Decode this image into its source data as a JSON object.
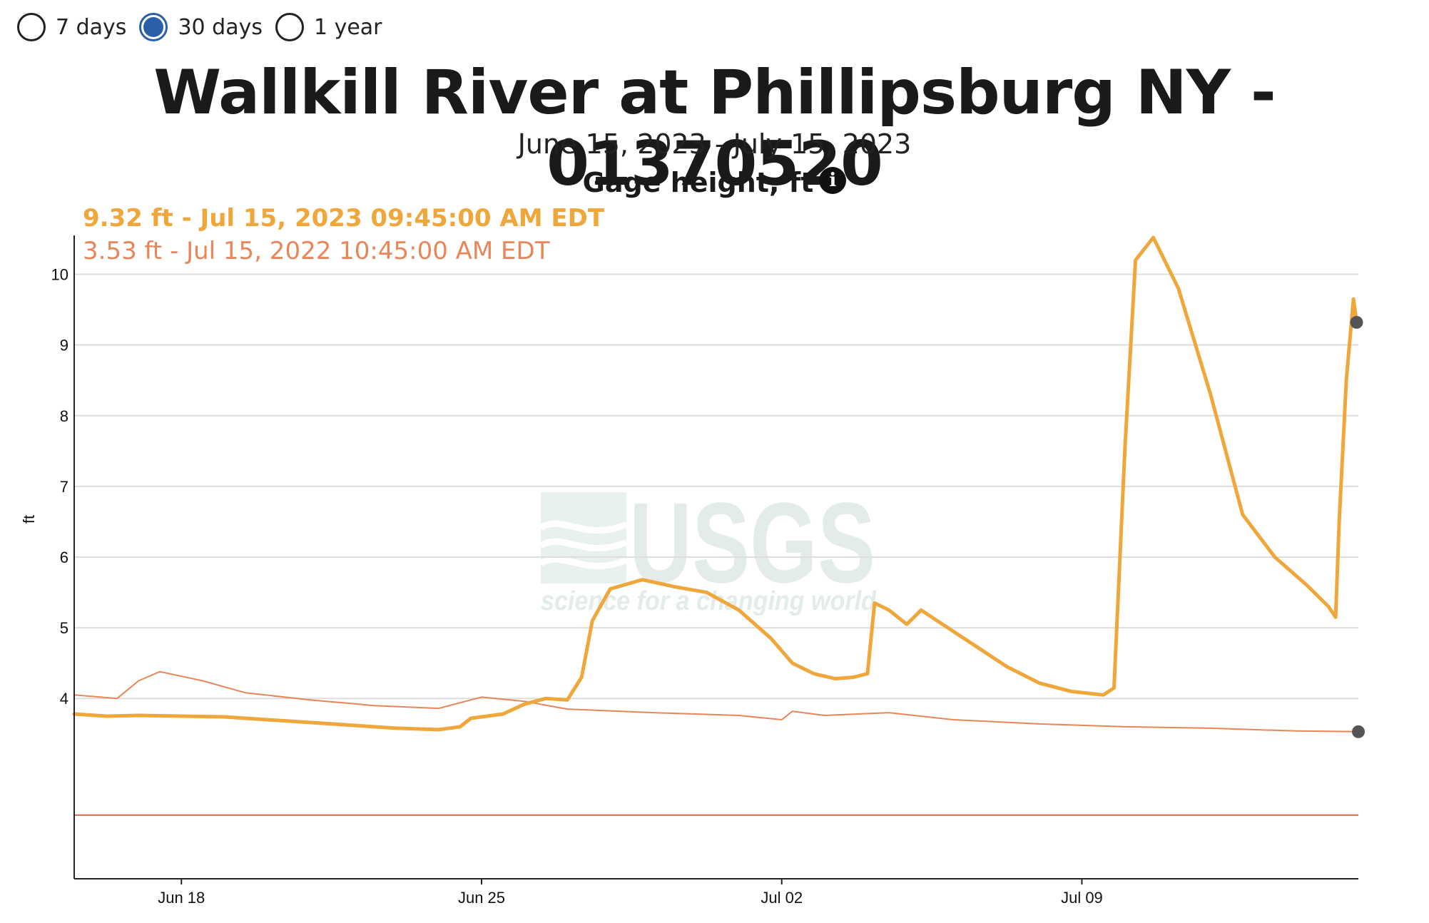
{
  "period_selector": {
    "options": [
      {
        "label": "7 days",
        "selected": false
      },
      {
        "label": "30 days",
        "selected": true
      },
      {
        "label": "1 year",
        "selected": false
      }
    ],
    "accent_color": "#2b5fa8"
  },
  "title": "Wallkill River at Phillipsburg NY - 01370520",
  "date_range": "June 15, 2023 - July 15, 2023",
  "parameter": "Gage height, ft",
  "info_icon": "info-icon",
  "current_reading": "9.32 ft - Jul 15, 2023 09:45:00 AM EDT",
  "previous_reading": "3.53 ft - Jul 15, 2022 10:45:00 AM EDT",
  "watermark": {
    "logo_text": "USGS",
    "tagline": "science for a changing world"
  },
  "chart_data": {
    "type": "line",
    "ylabel": "ft",
    "xlabel": "",
    "x_ticks": [
      "Jun 18",
      "Jun 25",
      "Jul 02",
      "Jul 09"
    ],
    "y_ticks": [
      4,
      5,
      6,
      7,
      8,
      9,
      10
    ],
    "ylim": [
      2.0,
      10.0
    ],
    "grid": true,
    "reference_line": {
      "value": 2.35,
      "color": "#e0643c"
    },
    "series": [
      {
        "name": "",
        "color": "#efa73b",
        "points": [
          [
            "2023-06-15 12:00",
            3.78
          ],
          [
            "2023-06-16 06:00",
            3.75
          ],
          [
            "2023-06-17 00:00",
            3.76
          ],
          [
            "2023-06-18 00:00",
            3.75
          ],
          [
            "2023-06-19 00:00",
            3.74
          ],
          [
            "2023-06-20 00:00",
            3.7
          ],
          [
            "2023-06-21 00:00",
            3.66
          ],
          [
            "2023-06-22 00:00",
            3.62
          ],
          [
            "2023-06-23 00:00",
            3.58
          ],
          [
            "2023-06-24 00:00",
            3.56
          ],
          [
            "2023-06-24 12:00",
            3.6
          ],
          [
            "2023-06-24 18:00",
            3.72
          ],
          [
            "2023-06-25 12:00",
            3.78
          ],
          [
            "2023-06-26 00:00",
            3.92
          ],
          [
            "2023-06-26 12:00",
            4.0
          ],
          [
            "2023-06-27 00:00",
            3.98
          ],
          [
            "2023-06-27 08:00",
            4.3
          ],
          [
            "2023-06-27 14:00",
            5.1
          ],
          [
            "2023-06-28 00:00",
            5.55
          ],
          [
            "2023-06-28 18:00",
            5.68
          ],
          [
            "2023-06-29 12:00",
            5.58
          ],
          [
            "2023-06-30 06:00",
            5.5
          ],
          [
            "2023-07-01 00:00",
            5.25
          ],
          [
            "2023-07-01 18:00",
            4.85
          ],
          [
            "2023-07-02 06:00",
            4.5
          ],
          [
            "2023-07-02 18:00",
            4.35
          ],
          [
            "2023-07-03 06:00",
            4.28
          ],
          [
            "2023-07-03 16:00",
            4.3
          ],
          [
            "2023-07-04 00:00",
            4.35
          ],
          [
            "2023-07-04 04:00",
            5.35
          ],
          [
            "2023-07-04 12:00",
            5.25
          ],
          [
            "2023-07-04 22:00",
            5.05
          ],
          [
            "2023-07-05 06:00",
            5.25
          ],
          [
            "2023-07-05 18:00",
            5.05
          ],
          [
            "2023-07-06 12:00",
            4.75
          ],
          [
            "2023-07-07 06:00",
            4.45
          ],
          [
            "2023-07-08 00:00",
            4.22
          ],
          [
            "2023-07-08 18:00",
            4.1
          ],
          [
            "2023-07-09 12:00",
            4.05
          ],
          [
            "2023-07-09 18:00",
            4.15
          ],
          [
            "2023-07-10 00:00",
            7.5
          ],
          [
            "2023-07-10 06:00",
            10.2
          ],
          [
            "2023-07-10 16:00",
            10.52
          ],
          [
            "2023-07-11 06:00",
            9.8
          ],
          [
            "2023-07-12 00:00",
            8.3
          ],
          [
            "2023-07-12 18:00",
            6.6
          ],
          [
            "2023-07-13 12:00",
            6.0
          ],
          [
            "2023-07-14 06:00",
            5.6
          ],
          [
            "2023-07-14 18:00",
            5.3
          ],
          [
            "2023-07-14 22:00",
            5.15
          ],
          [
            "2023-07-15 00:00",
            6.5
          ],
          [
            "2023-07-15 04:00",
            8.5
          ],
          [
            "2023-07-15 08:00",
            9.65
          ],
          [
            "2023-07-15 09:45",
            9.32
          ]
        ]
      },
      {
        "name": "",
        "color": "#e8865a",
        "points": [
          [
            "2023-06-15 12:00",
            4.05
          ],
          [
            "2023-06-16 12:00",
            4.0
          ],
          [
            "2023-06-17 00:00",
            4.25
          ],
          [
            "2023-06-17 12:00",
            4.38
          ],
          [
            "2023-06-18 12:00",
            4.25
          ],
          [
            "2023-06-19 12:00",
            4.08
          ],
          [
            "2023-06-21 00:00",
            3.98
          ],
          [
            "2023-06-22 12:00",
            3.9
          ],
          [
            "2023-06-24 00:00",
            3.86
          ],
          [
            "2023-06-25 00:00",
            4.02
          ],
          [
            "2023-06-26 00:00",
            3.96
          ],
          [
            "2023-06-27 00:00",
            3.85
          ],
          [
            "2023-06-29 00:00",
            3.8
          ],
          [
            "2023-07-01 00:00",
            3.76
          ],
          [
            "2023-07-02 00:00",
            3.7
          ],
          [
            "2023-07-02 06:00",
            3.82
          ],
          [
            "2023-07-03 00:00",
            3.76
          ],
          [
            "2023-07-04 12:00",
            3.8
          ],
          [
            "2023-07-06 00:00",
            3.7
          ],
          [
            "2023-07-08 00:00",
            3.64
          ],
          [
            "2023-07-10 00:00",
            3.6
          ],
          [
            "2023-07-12 00:00",
            3.58
          ],
          [
            "2023-07-14 00:00",
            3.54
          ],
          [
            "2023-07-15 10:45",
            3.53
          ]
        ]
      }
    ]
  }
}
